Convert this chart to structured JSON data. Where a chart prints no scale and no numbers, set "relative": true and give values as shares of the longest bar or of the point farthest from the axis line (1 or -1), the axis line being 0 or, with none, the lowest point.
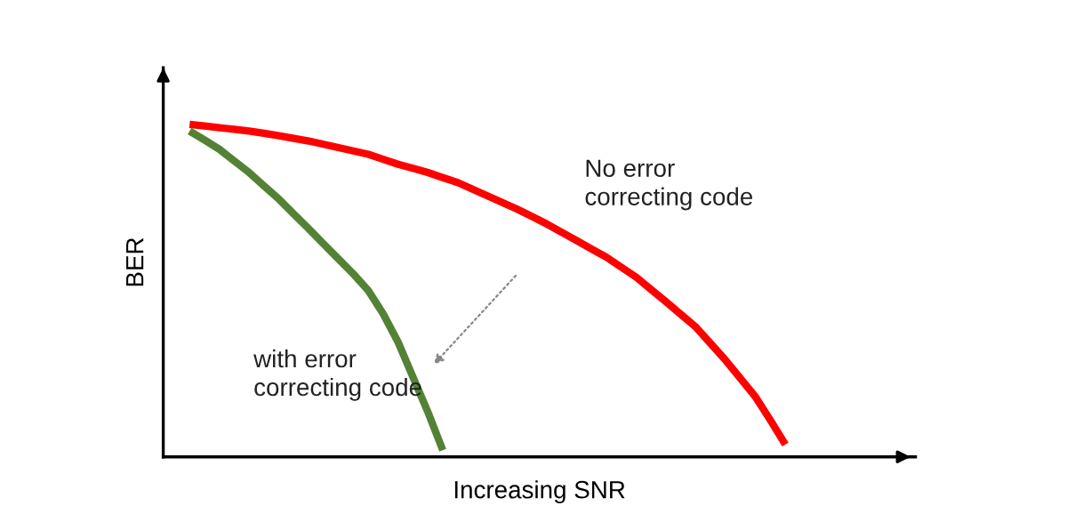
{
  "chart_data": {
    "type": "line",
    "relative": true,
    "xlabel": "Increasing SNR",
    "ylabel": "BER",
    "legend": false,
    "marker": "none",
    "line_style": "solid",
    "categories": [
      null,
      null,
      null,
      null,
      null,
      null,
      null,
      null,
      null,
      null,
      null,
      null,
      null,
      null,
      null,
      null,
      null,
      null,
      null,
      null,
      null,
      null,
      null,
      null,
      null,
      null,
      null,
      null,
      null,
      null,
      null,
      null,
      null,
      null,
      null,
      null,
      null,
      null,
      null,
      null,
      null
    ],
    "series": [
      {
        "name": "No error\ncorrecting code",
        "color": "#ff0000",
        "values": [
          1.0,
          0.995,
          0.99,
          0.985,
          0.98,
          0.973,
          0.966,
          0.958,
          0.95,
          0.94,
          0.93,
          0.92,
          0.91,
          0.895,
          0.88,
          0.868,
          0.855,
          0.84,
          0.825,
          0.805,
          0.785,
          0.765,
          0.745,
          0.723,
          0.7,
          0.675,
          0.65,
          0.625,
          0.6,
          0.57,
          0.54,
          0.503,
          0.466,
          0.428,
          0.39,
          0.34,
          0.29,
          0.235,
          0.18,
          0.11,
          0.037
        ]
      },
      {
        "name": "with error\ncorrecting code",
        "color": "#548235",
        "values": [
          0.98,
          0.953,
          0.925,
          0.89,
          0.855,
          0.815,
          0.775,
          0.73,
          0.686,
          0.64,
          0.595,
          0.55,
          0.5,
          0.43,
          0.345,
          0.24,
          0.135,
          0.02,
          null,
          null,
          null,
          null,
          null,
          null,
          null,
          null,
          null,
          null,
          null,
          null,
          null,
          null,
          null,
          null,
          null,
          null,
          null,
          null,
          null,
          null,
          null
        ]
      }
    ]
  }
}
